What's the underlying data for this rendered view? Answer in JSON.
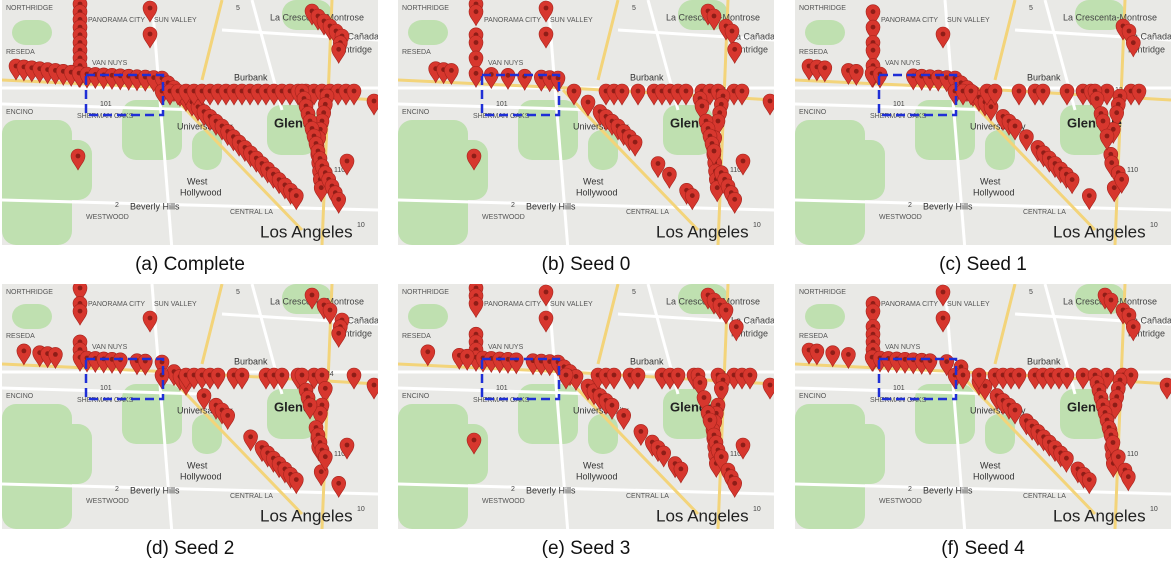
{
  "panels": [
    {
      "caption": "(a) Complete"
    },
    {
      "caption": "(b) Seed 0"
    },
    {
      "caption": "(c) Seed 1"
    },
    {
      "caption": "(d) Seed 2"
    },
    {
      "caption": "(e) Seed 3"
    },
    {
      "caption": "(f) Seed 4"
    }
  ],
  "map_labels": [
    "NORTHRIDGE",
    "PANORAMA CITY",
    "SUN VALLEY",
    "La Crescenta-Montrose",
    "La Cañada",
    "Flintridge",
    "RESEDA",
    "VAN NUYS",
    "Burbank",
    "ENCINO",
    "SHERMAN OAKS",
    "Universal City",
    "Glendale",
    "West",
    "Hollywood",
    "Beverly Hills",
    "WESTWOOD",
    "CENTRAL LA",
    "Los Angeles",
    "101",
    "134",
    "110",
    "10",
    "2",
    "5"
  ]
}
